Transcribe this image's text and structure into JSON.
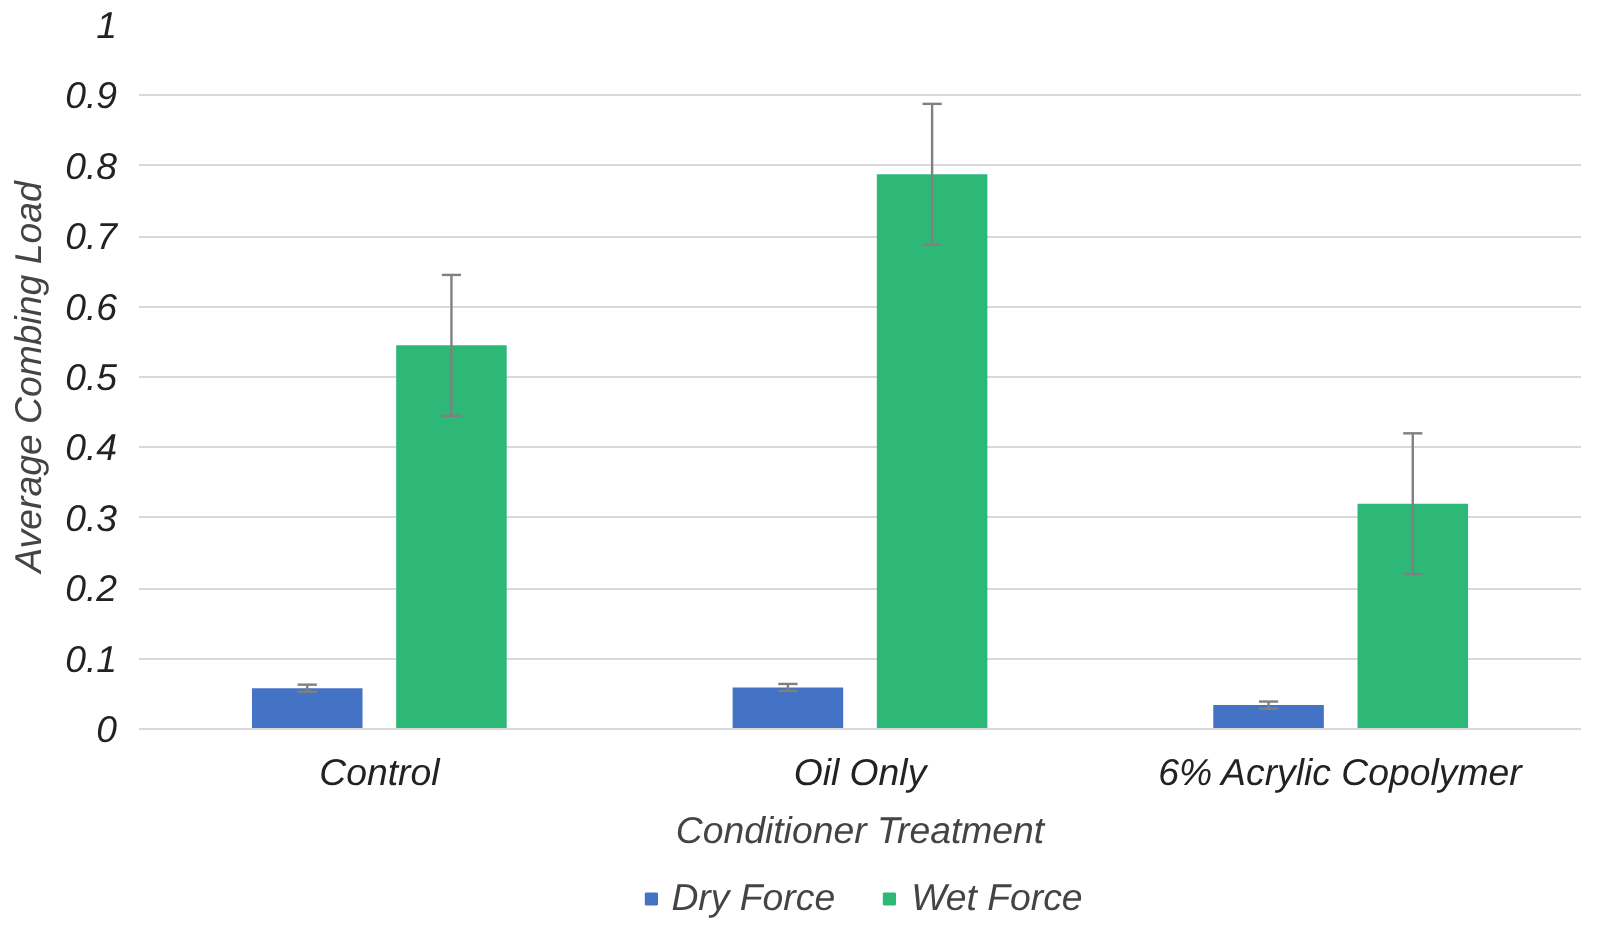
{
  "chart_data": {
    "type": "bar",
    "xlabel": "Conditioner Treatment",
    "ylabel": "Average Combing Load",
    "categories": [
      "Control",
      "Oil Only",
      "6% Acrylic Copolymer"
    ],
    "series": [
      {
        "name": "Dry Force",
        "color": "#4472c4",
        "values": [
          0.058,
          0.059,
          0.034
        ],
        "errors": [
          0.005,
          0.005,
          0.005
        ]
      },
      {
        "name": "Wet Force",
        "color": "#2eb878",
        "values": [
          0.545,
          0.788,
          0.32
        ],
        "errors": [
          0.1,
          0.1,
          0.1
        ]
      }
    ],
    "ylim": [
      0,
      1
    ],
    "yticks": [
      0,
      0.1,
      0.2,
      0.3,
      0.4,
      0.5,
      0.6,
      0.7,
      0.8,
      0.9,
      1
    ],
    "grid": "y",
    "legend": "bottom"
  }
}
